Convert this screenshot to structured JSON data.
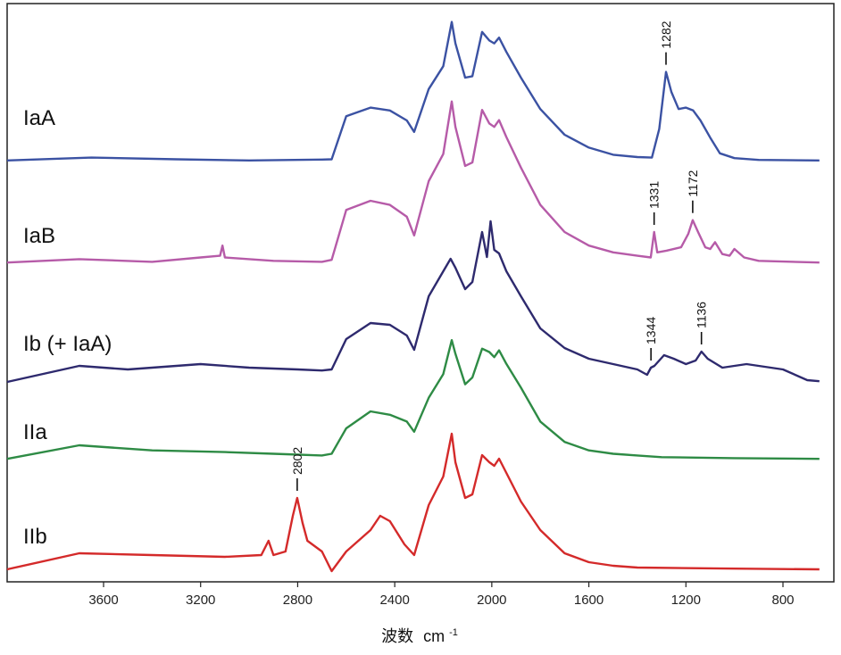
{
  "chart_data": {
    "type": "line",
    "title": "",
    "xlabel": "波数",
    "xlabel_unit": "cm",
    "xlabel_unit_exponent": "-1",
    "ylabel": "",
    "x_reversed": true,
    "xlim": [
      4000,
      650
    ],
    "xticks": [
      3600,
      3200,
      2800,
      2400,
      2000,
      1600,
      1200,
      800
    ],
    "grid": false,
    "legend": "none",
    "series": [
      {
        "name": "IaA",
        "color": "#3b52a3",
        "baseline": 0.1,
        "points": [
          [
            4000,
            0.1
          ],
          [
            3650,
            0.2
          ],
          [
            3300,
            0.14
          ],
          [
            3000,
            0.1
          ],
          [
            2700,
            0.13
          ],
          [
            2660,
            0.14
          ],
          [
            2600,
            1.65
          ],
          [
            2500,
            1.95
          ],
          [
            2420,
            1.85
          ],
          [
            2350,
            1.5
          ],
          [
            2320,
            1.1
          ],
          [
            2260,
            2.6
          ],
          [
            2200,
            3.4
          ],
          [
            2165,
            4.95
          ],
          [
            2150,
            4.2
          ],
          [
            2110,
            3.0
          ],
          [
            2080,
            3.05
          ],
          [
            2040,
            4.6
          ],
          [
            2010,
            4.3
          ],
          [
            1990,
            4.2
          ],
          [
            1970,
            4.4
          ],
          [
            1940,
            3.9
          ],
          [
            1880,
            3.0
          ],
          [
            1800,
            1.9
          ],
          [
            1700,
            1.0
          ],
          [
            1600,
            0.55
          ],
          [
            1500,
            0.3
          ],
          [
            1400,
            0.22
          ],
          [
            1340,
            0.2
          ],
          [
            1310,
            1.2
          ],
          [
            1282,
            3.2
          ],
          [
            1260,
            2.5
          ],
          [
            1230,
            1.9
          ],
          [
            1200,
            1.95
          ],
          [
            1170,
            1.85
          ],
          [
            1140,
            1.5
          ],
          [
            1100,
            0.9
          ],
          [
            1060,
            0.35
          ],
          [
            1000,
            0.18
          ],
          [
            900,
            0.12
          ],
          [
            650,
            0.1
          ]
        ]
      },
      {
        "name": "IaB",
        "color": "#b65ba8",
        "baseline": 0.1,
        "points": [
          [
            4000,
            0.1
          ],
          [
            3700,
            0.2
          ],
          [
            3400,
            0.12
          ],
          [
            3200,
            0.25
          ],
          [
            3120,
            0.3
          ],
          [
            3110,
            0.6
          ],
          [
            3100,
            0.25
          ],
          [
            2900,
            0.15
          ],
          [
            2700,
            0.12
          ],
          [
            2660,
            0.18
          ],
          [
            2600,
            1.65
          ],
          [
            2500,
            1.92
          ],
          [
            2420,
            1.8
          ],
          [
            2350,
            1.45
          ],
          [
            2320,
            0.9
          ],
          [
            2260,
            2.5
          ],
          [
            2200,
            3.3
          ],
          [
            2165,
            4.85
          ],
          [
            2150,
            4.1
          ],
          [
            2110,
            2.95
          ],
          [
            2080,
            3.05
          ],
          [
            2040,
            4.6
          ],
          [
            2010,
            4.2
          ],
          [
            1990,
            4.1
          ],
          [
            1970,
            4.3
          ],
          [
            1940,
            3.8
          ],
          [
            1880,
            2.9
          ],
          [
            1800,
            1.8
          ],
          [
            1700,
            1.0
          ],
          [
            1600,
            0.6
          ],
          [
            1500,
            0.4
          ],
          [
            1400,
            0.3
          ],
          [
            1345,
            0.25
          ],
          [
            1331,
            1.0
          ],
          [
            1318,
            0.4
          ],
          [
            1280,
            0.45
          ],
          [
            1220,
            0.55
          ],
          [
            1190,
            0.95
          ],
          [
            1172,
            1.35
          ],
          [
            1150,
            1.0
          ],
          [
            1120,
            0.55
          ],
          [
            1100,
            0.5
          ],
          [
            1080,
            0.7
          ],
          [
            1050,
            0.35
          ],
          [
            1020,
            0.3
          ],
          [
            1000,
            0.5
          ],
          [
            960,
            0.25
          ],
          [
            900,
            0.15
          ],
          [
            650,
            0.1
          ]
        ]
      },
      {
        "name": "Ib (+ IaA)",
        "color": "#2e2a6e",
        "baseline": 0.1,
        "points": [
          [
            4000,
            0.1
          ],
          [
            3700,
            0.55
          ],
          [
            3500,
            0.45
          ],
          [
            3200,
            0.6
          ],
          [
            3000,
            0.5
          ],
          [
            2800,
            0.45
          ],
          [
            2700,
            0.42
          ],
          [
            2660,
            0.45
          ],
          [
            2600,
            1.3
          ],
          [
            2500,
            1.75
          ],
          [
            2420,
            1.7
          ],
          [
            2350,
            1.4
          ],
          [
            2320,
            1.0
          ],
          [
            2260,
            2.5
          ],
          [
            2200,
            3.2
          ],
          [
            2170,
            3.55
          ],
          [
            2150,
            3.3
          ],
          [
            2110,
            2.7
          ],
          [
            2080,
            2.9
          ],
          [
            2040,
            4.3
          ],
          [
            2020,
            3.6
          ],
          [
            2005,
            4.6
          ],
          [
            1990,
            3.8
          ],
          [
            1970,
            3.7
          ],
          [
            1940,
            3.2
          ],
          [
            1880,
            2.5
          ],
          [
            1800,
            1.6
          ],
          [
            1700,
            1.05
          ],
          [
            1600,
            0.75
          ],
          [
            1500,
            0.6
          ],
          [
            1400,
            0.45
          ],
          [
            1360,
            0.3
          ],
          [
            1344,
            0.5
          ],
          [
            1330,
            0.55
          ],
          [
            1290,
            0.85
          ],
          [
            1250,
            0.75
          ],
          [
            1200,
            0.6
          ],
          [
            1160,
            0.7
          ],
          [
            1136,
            0.95
          ],
          [
            1110,
            0.75
          ],
          [
            1050,
            0.5
          ],
          [
            1000,
            0.55
          ],
          [
            950,
            0.6
          ],
          [
            850,
            0.5
          ],
          [
            800,
            0.45
          ],
          [
            700,
            0.15
          ],
          [
            650,
            0.12
          ]
        ]
      },
      {
        "name": "IIa",
        "color": "#2e8b45",
        "baseline": 0.1,
        "points": [
          [
            4000,
            0.1
          ],
          [
            3700,
            0.5
          ],
          [
            3400,
            0.35
          ],
          [
            3100,
            0.3
          ],
          [
            2900,
            0.25
          ],
          [
            2700,
            0.2
          ],
          [
            2660,
            0.25
          ],
          [
            2600,
            1.0
          ],
          [
            2500,
            1.5
          ],
          [
            2420,
            1.4
          ],
          [
            2350,
            1.2
          ],
          [
            2320,
            0.9
          ],
          [
            2260,
            1.9
          ],
          [
            2200,
            2.6
          ],
          [
            2165,
            3.6
          ],
          [
            2150,
            3.2
          ],
          [
            2110,
            2.3
          ],
          [
            2080,
            2.5
          ],
          [
            2040,
            3.35
          ],
          [
            2010,
            3.25
          ],
          [
            1990,
            3.1
          ],
          [
            1970,
            3.3
          ],
          [
            1940,
            2.9
          ],
          [
            1880,
            2.2
          ],
          [
            1800,
            1.2
          ],
          [
            1700,
            0.6
          ],
          [
            1600,
            0.35
          ],
          [
            1500,
            0.25
          ],
          [
            1400,
            0.2
          ],
          [
            1300,
            0.15
          ],
          [
            1000,
            0.12
          ],
          [
            650,
            0.1
          ]
        ]
      },
      {
        "name": "IIb",
        "color": "#d42a2a",
        "baseline": 0.1,
        "points": [
          [
            4000,
            0.1
          ],
          [
            3700,
            0.55
          ],
          [
            3400,
            0.5
          ],
          [
            3100,
            0.45
          ],
          [
            2950,
            0.5
          ],
          [
            2920,
            0.9
          ],
          [
            2900,
            0.5
          ],
          [
            2850,
            0.6
          ],
          [
            2820,
            1.6
          ],
          [
            2802,
            2.1
          ],
          [
            2780,
            1.4
          ],
          [
            2760,
            0.9
          ],
          [
            2700,
            0.6
          ],
          [
            2660,
            0.05
          ],
          [
            2600,
            0.6
          ],
          [
            2500,
            1.2
          ],
          [
            2460,
            1.6
          ],
          [
            2420,
            1.45
          ],
          [
            2360,
            0.8
          ],
          [
            2320,
            0.5
          ],
          [
            2260,
            1.9
          ],
          [
            2200,
            2.7
          ],
          [
            2165,
            3.9
          ],
          [
            2150,
            3.1
          ],
          [
            2110,
            2.1
          ],
          [
            2080,
            2.2
          ],
          [
            2040,
            3.3
          ],
          [
            2010,
            3.1
          ],
          [
            1990,
            3.0
          ],
          [
            1970,
            3.2
          ],
          [
            1940,
            2.8
          ],
          [
            1880,
            2.0
          ],
          [
            1800,
            1.2
          ],
          [
            1700,
            0.55
          ],
          [
            1600,
            0.3
          ],
          [
            1500,
            0.2
          ],
          [
            1400,
            0.15
          ],
          [
            1000,
            0.12
          ],
          [
            650,
            0.1
          ]
        ]
      }
    ],
    "annotations": [
      {
        "series": "IaA",
        "x": 1282,
        "label": "1282"
      },
      {
        "series": "IaB",
        "x": 1331,
        "label": "1331"
      },
      {
        "series": "IaB",
        "x": 1172,
        "label": "1172"
      },
      {
        "series": "Ib (+ IaA)",
        "x": 1344,
        "label": "1344"
      },
      {
        "series": "Ib (+ IaA)",
        "x": 1136,
        "label": "1136"
      },
      {
        "series": "IIb",
        "x": 2802,
        "label": "2802"
      }
    ]
  }
}
